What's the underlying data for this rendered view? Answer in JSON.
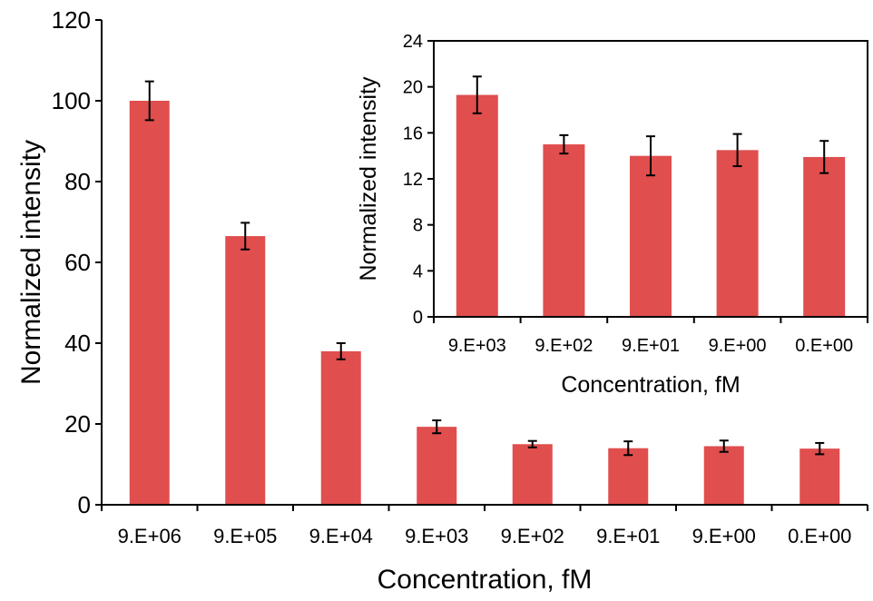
{
  "colors": {
    "bar": "#E04E4E",
    "axis": "#000000",
    "error_bar": "#000000",
    "background": "#FFFFFF"
  },
  "chart_data": [
    {
      "type": "bar",
      "xlabel": "Concentration, fM",
      "ylabel": "Normalized intensity",
      "ylim": [
        0,
        120
      ],
      "yticks": [
        0,
        20,
        40,
        60,
        80,
        100,
        120
      ],
      "grid": false,
      "categories": [
        "9.E+06",
        "9.E+05",
        "9.E+04",
        "9.E+03",
        "9.E+02",
        "9.E+01",
        "9.E+00",
        "0.E+00"
      ],
      "values": [
        100,
        66.5,
        38,
        19.3,
        15,
        14,
        14.5,
        13.9
      ],
      "errors": [
        4.8,
        3.3,
        2.0,
        1.6,
        0.8,
        1.7,
        1.4,
        1.4
      ]
    },
    {
      "type": "bar",
      "xlabel": "Concentration, fM",
      "ylabel": "Normalized intensity",
      "ylim": [
        0,
        24
      ],
      "yticks": [
        0,
        4,
        8,
        12,
        16,
        20,
        24
      ],
      "grid": false,
      "categories": [
        "9.E+03",
        "9.E+02",
        "9.E+01",
        "9.E+00",
        "0.E+00"
      ],
      "values": [
        19.3,
        15,
        14,
        14.5,
        13.9
      ],
      "errors": [
        1.6,
        0.8,
        1.7,
        1.4,
        1.4
      ]
    }
  ]
}
